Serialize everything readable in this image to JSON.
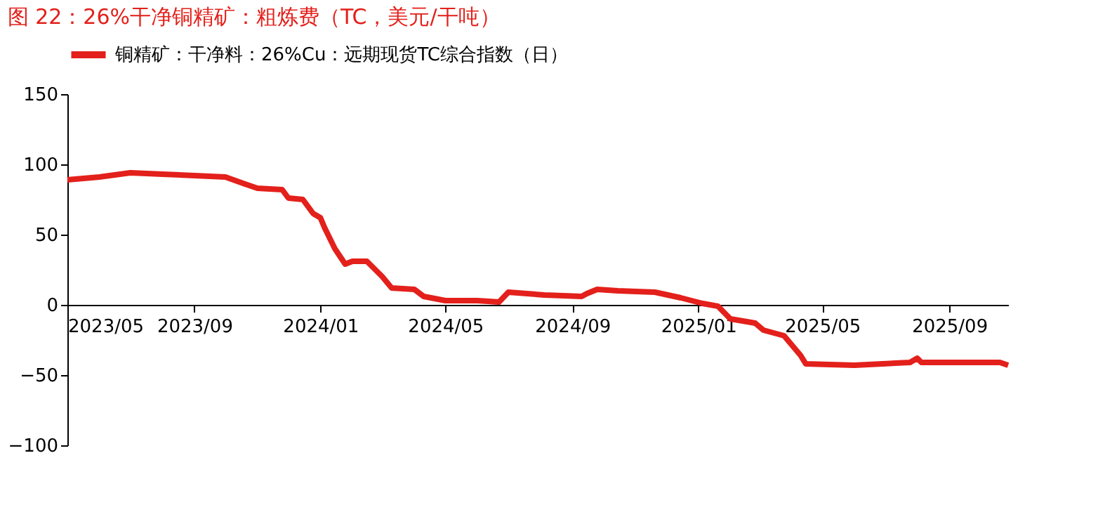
{
  "chart_data": {
    "type": "line",
    "title": "图 22：26%干净铜精矿：粗炼费（TC，美元/干吨）",
    "x": [
      "2023-05-01",
      "2023-06-01",
      "2023-07-01",
      "2023-08-01",
      "2023-09-01",
      "2023-10-01",
      "2023-10-20",
      "2023-11-01",
      "2023-11-25",
      "2023-12-01",
      "2023-12-15",
      "2023-12-25",
      "2024-01-01",
      "2024-01-05",
      "2024-01-15",
      "2024-01-25",
      "2024-02-01",
      "2024-02-15",
      "2024-03-01",
      "2024-03-10",
      "2024-04-01",
      "2024-04-10",
      "2024-05-01",
      "2024-06-01",
      "2024-06-22",
      "2024-07-01",
      "2024-08-05",
      "2024-09-10",
      "2024-09-15",
      "2024-09-25",
      "2024-10-15",
      "2024-11-20",
      "2024-12-15",
      "2025-01-05",
      "2025-01-20",
      "2025-02-01",
      "2025-02-25",
      "2025-03-05",
      "2025-03-25",
      "2025-04-10",
      "2025-04-15",
      "2025-06-01",
      "2025-07-25",
      "2025-08-01",
      "2025-08-05",
      "2025-09-01",
      "2025-10-20",
      "2025-10-28"
    ],
    "series": [
      {
        "name": "铜精矿：干净料：26%Cu：远期现货TC综合指数（日）",
        "color": "#e3201b",
        "values": [
          89,
          91,
          94,
          93,
          92,
          91,
          86,
          83,
          82,
          76,
          75,
          65,
          62,
          55,
          40,
          29,
          31,
          31,
          20,
          12,
          11,
          6,
          3,
          3,
          2,
          9,
          7,
          6,
          8,
          11,
          10,
          9,
          5,
          1,
          -1,
          -10,
          -13,
          -18,
          -22,
          -36,
          -42,
          -43,
          -41,
          -38,
          -41,
          -41,
          -41,
          -43
        ]
      }
    ],
    "xlim": [
      "2023-05-01",
      "2025-10-28"
    ],
    "xticks": [
      {
        "value": "2023-05-01",
        "label": "2023/05"
      },
      {
        "value": "2023-09-01",
        "label": "2023/09"
      },
      {
        "value": "2024-01-01",
        "label": "2024/01"
      },
      {
        "value": "2024-05-01",
        "label": "2024/05"
      },
      {
        "value": "2024-09-01",
        "label": "2024/09"
      },
      {
        "value": "2025-01-01",
        "label": "2025/01"
      },
      {
        "value": "2025-05-01",
        "label": "2025/05"
      },
      {
        "value": "2025-09-01",
        "label": "2025/09"
      }
    ],
    "ylim": [
      -100,
      150
    ],
    "yticks": [
      -100,
      -50,
      0,
      50,
      100,
      150
    ],
    "grid": false,
    "legend": "top",
    "marker": "none",
    "line_style": "solid"
  }
}
